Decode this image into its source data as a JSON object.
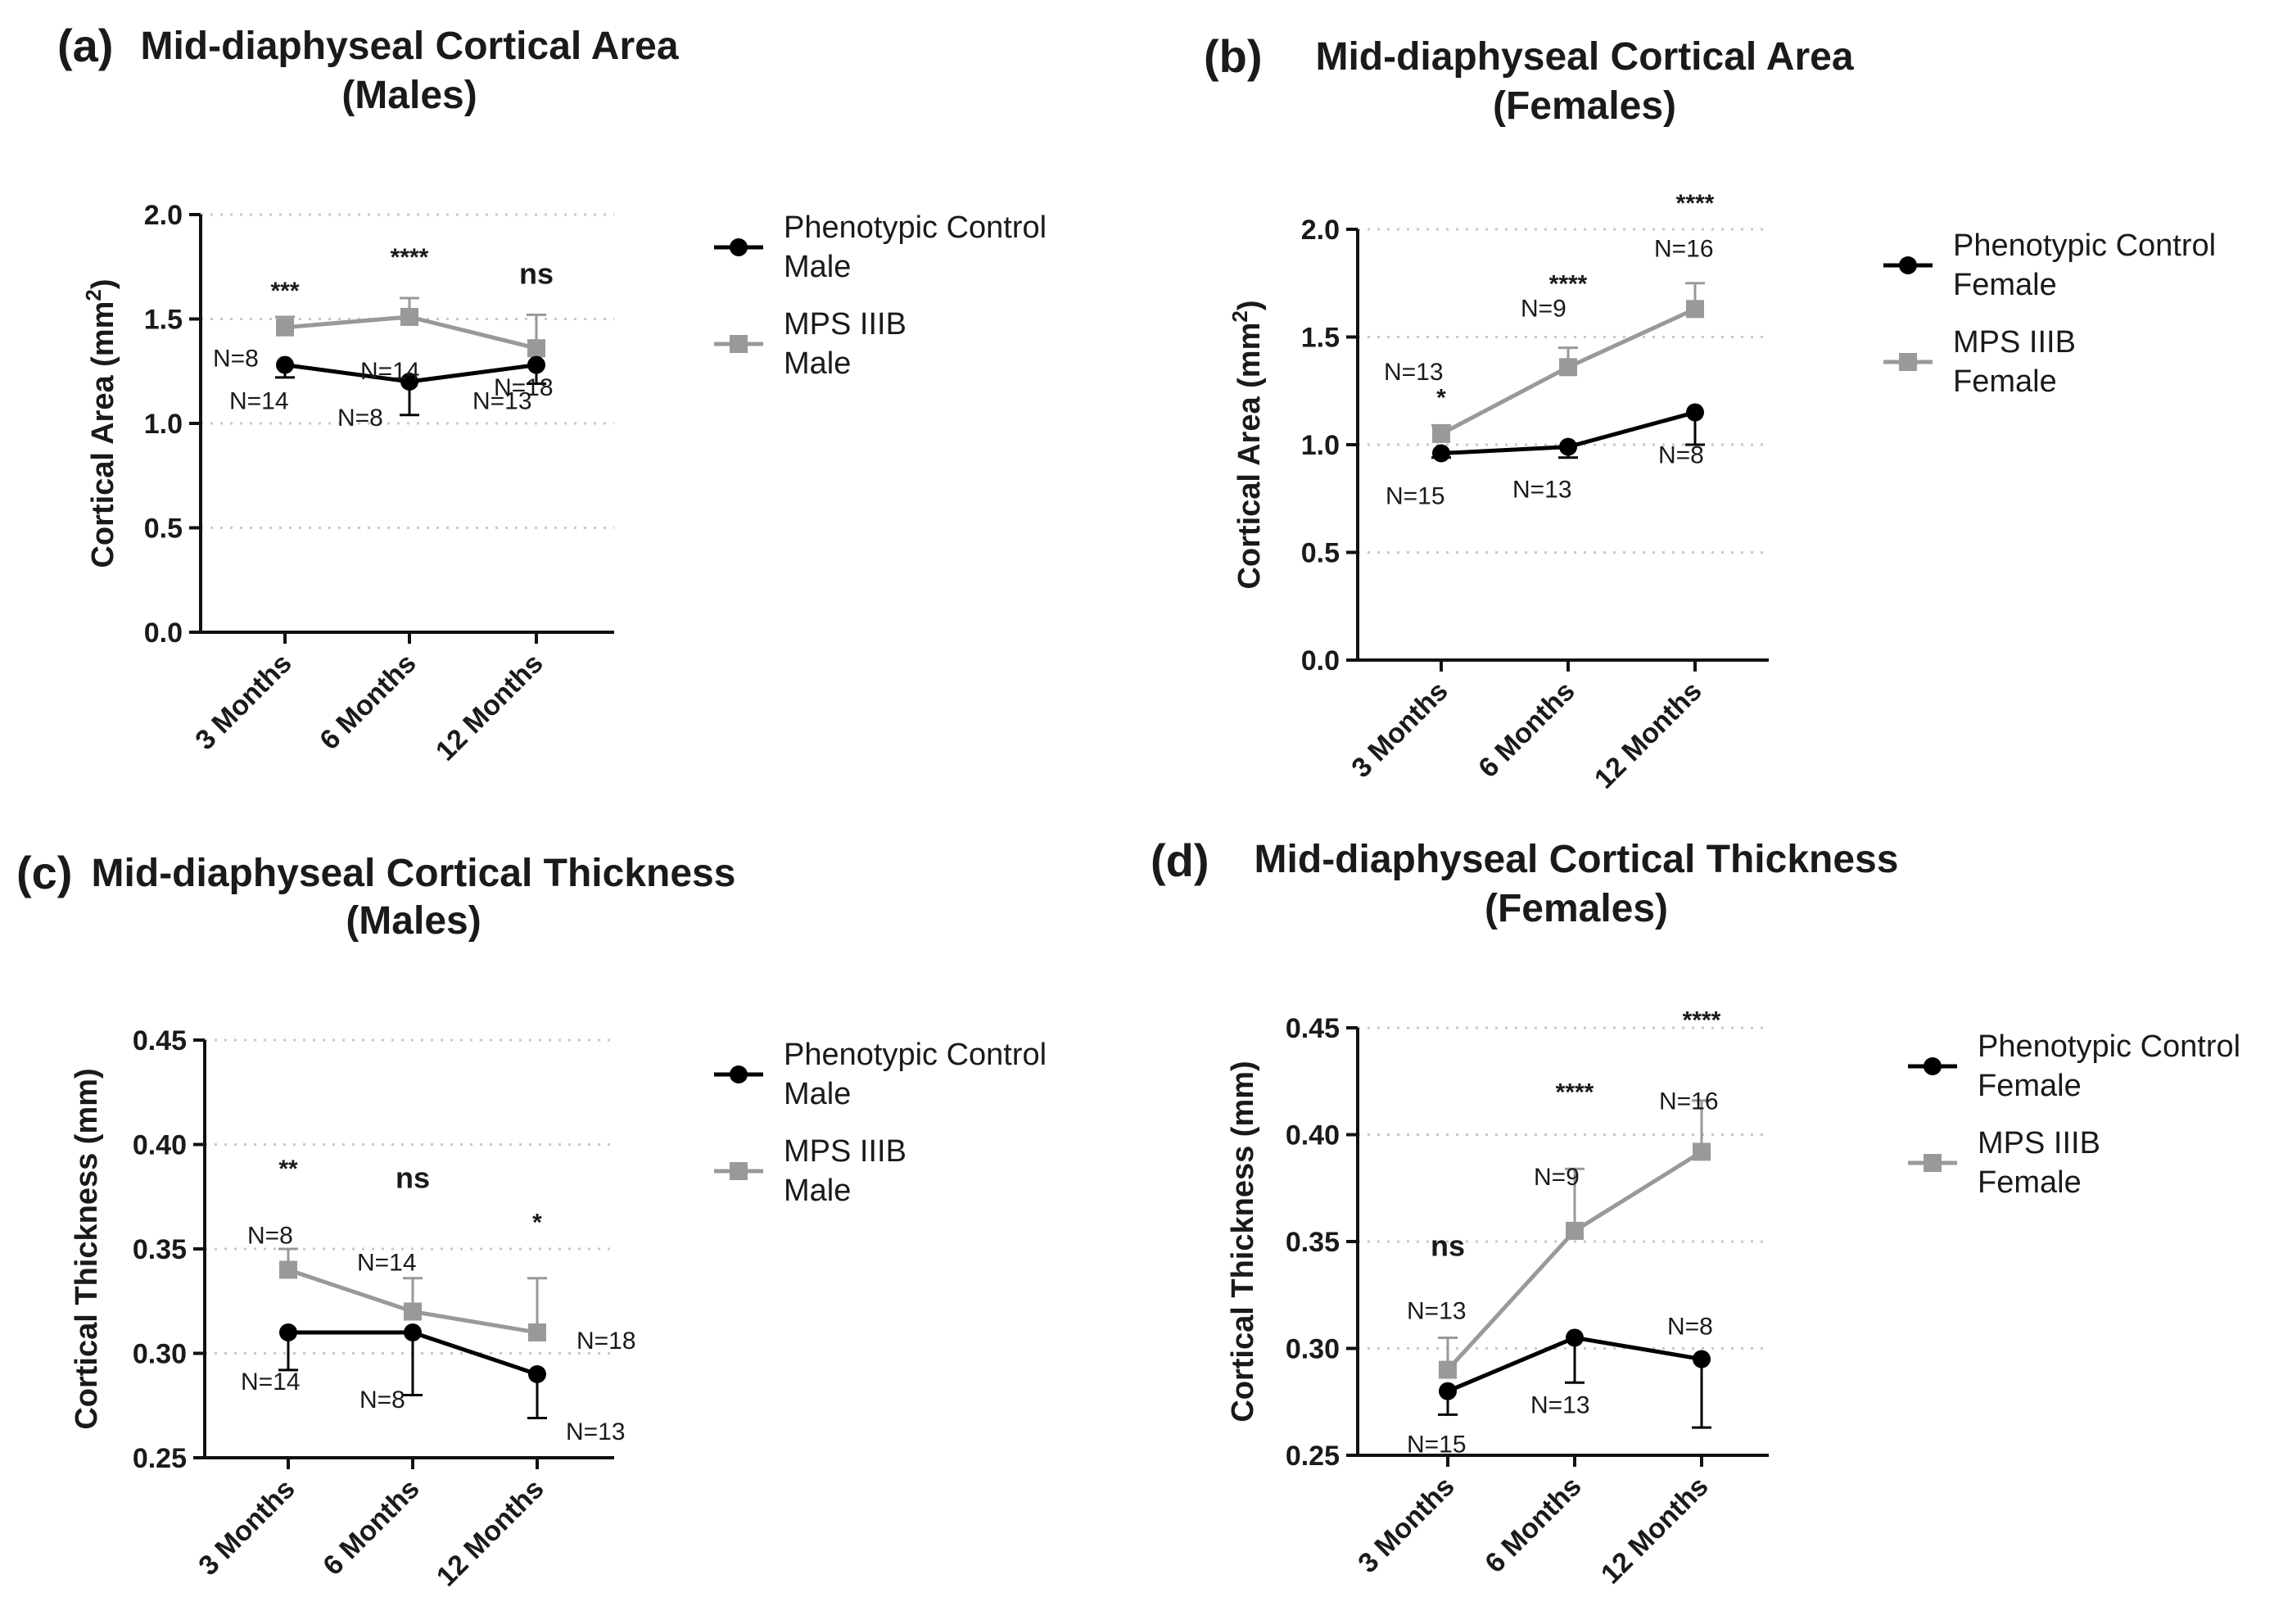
{
  "chart_data": [
    {
      "type": "line",
      "panel_label": "(a)",
      "title_lines": [
        "Mid-diaphyseal Cortical Area",
        "(Males)"
      ],
      "ylabel": "Cortical Area (mm",
      "ylabel_sup": "2",
      "ylabel_close": ")",
      "ylim": [
        0,
        2.0
      ],
      "yticks": [
        0.0,
        0.5,
        1.0,
        1.5,
        2.0
      ],
      "ytick_labels": [
        "0.0",
        "0.5",
        "1.0",
        "1.5",
        "2.0"
      ],
      "categories": [
        "3 Months",
        "6 Months",
        "12 Months"
      ],
      "series": [
        {
          "name": "Phenotypic Control Male",
          "legend": [
            "Phenotypic Control",
            "Male"
          ],
          "color": "#000000",
          "marker": "circle",
          "values": [
            1.28,
            1.2,
            1.28
          ],
          "errors": [
            0.06,
            0.16,
            0.09
          ],
          "n_labels": [
            "N=14",
            "N=8",
            "N=13"
          ],
          "err_dir": "down"
        },
        {
          "name": "MPS IIIB Male",
          "legend": [
            "MPS IIIB",
            "Male"
          ],
          "color": "#999999",
          "marker": "square",
          "values": [
            1.46,
            1.51,
            1.36
          ],
          "errors": [
            0.05,
            0.09,
            0.16
          ],
          "n_labels": [
            "N=8",
            "N=14",
            "N=18"
          ],
          "err_dir": "up"
        }
      ],
      "significance": [
        "***",
        "****",
        "ns"
      ]
    },
    {
      "type": "line",
      "panel_label": "(b)",
      "title_lines": [
        "Mid-diaphyseal Cortical Area",
        "(Females)"
      ],
      "ylabel": "Cortical Area (mm",
      "ylabel_sup": "2",
      "ylabel_close": ")",
      "ylim": [
        0,
        2.0
      ],
      "yticks": [
        0.0,
        0.5,
        1.0,
        1.5,
        2.0
      ],
      "ytick_labels": [
        "0.0",
        "0.5",
        "1.0",
        "1.5",
        "2.0"
      ],
      "categories": [
        "3 Months",
        "6 Months",
        "12 Months"
      ],
      "series": [
        {
          "name": "Phenotypic Control Female",
          "legend": [
            "Phenotypic Control",
            "Female"
          ],
          "color": "#000000",
          "marker": "circle",
          "values": [
            0.96,
            0.99,
            1.15
          ],
          "errors": [
            0.02,
            0.05,
            0.15
          ],
          "n_labels": [
            "N=15",
            "N=13",
            "N=8"
          ],
          "err_dir": "down"
        },
        {
          "name": "MPS IIIB Female",
          "legend": [
            "MPS IIIB",
            "Female"
          ],
          "color": "#999999",
          "marker": "square",
          "values": [
            1.05,
            1.36,
            1.63
          ],
          "errors": [
            0.04,
            0.09,
            0.12
          ],
          "n_labels": [
            "N=13",
            "N=9",
            "N=16"
          ],
          "err_dir": "up"
        }
      ],
      "significance": [
        "*",
        "****",
        "****"
      ]
    },
    {
      "type": "line",
      "panel_label": "(c)",
      "title_lines": [
        "Mid-diaphyseal Cortical Thickness",
        "(Males)"
      ],
      "ylabel": "Cortical Thickness (mm)",
      "ylabel_sup": "",
      "ylabel_close": "",
      "ylim": [
        0.25,
        0.45
      ],
      "yticks": [
        0.25,
        0.3,
        0.35,
        0.4,
        0.45
      ],
      "ytick_labels": [
        "0.25",
        "0.30",
        "0.35",
        "0.40",
        "0.45"
      ],
      "categories": [
        "3 Months",
        "6 Months",
        "12 Months"
      ],
      "series": [
        {
          "name": "Phenotypic Control Male",
          "legend": [
            "Phenotypic Control",
            "Male"
          ],
          "color": "#000000",
          "marker": "circle",
          "values": [
            0.31,
            0.31,
            0.29
          ],
          "errors": [
            0.018,
            0.03,
            0.021
          ],
          "n_labels": [
            "N=14",
            "N=8",
            "N=13"
          ],
          "err_dir": "down"
        },
        {
          "name": "MPS IIIB Male",
          "legend": [
            "MPS IIIB",
            "Male"
          ],
          "color": "#999999",
          "marker": "square",
          "values": [
            0.34,
            0.32,
            0.31
          ],
          "errors": [
            0.01,
            0.016,
            0.026
          ],
          "n_labels": [
            "N=8",
            "N=14",
            "N=18"
          ],
          "err_dir": "up"
        }
      ],
      "significance": [
        "**",
        "ns",
        "*"
      ]
    },
    {
      "type": "line",
      "panel_label": "(d)",
      "title_lines": [
        "Mid-diaphyseal Cortical Thickness",
        "(Females)"
      ],
      "ylabel": "Cortical Thickness (mm)",
      "ylabel_sup": "",
      "ylabel_close": "",
      "ylim": [
        0.25,
        0.45
      ],
      "yticks": [
        0.25,
        0.3,
        0.35,
        0.4,
        0.45
      ],
      "ytick_labels": [
        "0.25",
        "0.30",
        "0.35",
        "0.40",
        "0.45"
      ],
      "categories": [
        "3 Months",
        "6 Months",
        "12 Months"
      ],
      "series": [
        {
          "name": "Phenotypic Control Female",
          "legend": [
            "Phenotypic Control",
            "Female"
          ],
          "color": "#000000",
          "marker": "circle",
          "values": [
            0.28,
            0.305,
            0.295
          ],
          "errors": [
            0.011,
            0.021,
            0.032
          ],
          "n_labels": [
            "N=15",
            "N=13",
            "N=8"
          ],
          "err_dir": "down"
        },
        {
          "name": "MPS IIIB Female",
          "legend": [
            "MPS IIIB",
            "Female"
          ],
          "color": "#999999",
          "marker": "square",
          "values": [
            0.29,
            0.355,
            0.392
          ],
          "errors": [
            0.015,
            0.029,
            0.024
          ],
          "n_labels": [
            "N=13",
            "N=9",
            "N=16"
          ],
          "err_dir": "up"
        }
      ],
      "significance": [
        "ns",
        "****",
        "****"
      ]
    }
  ]
}
